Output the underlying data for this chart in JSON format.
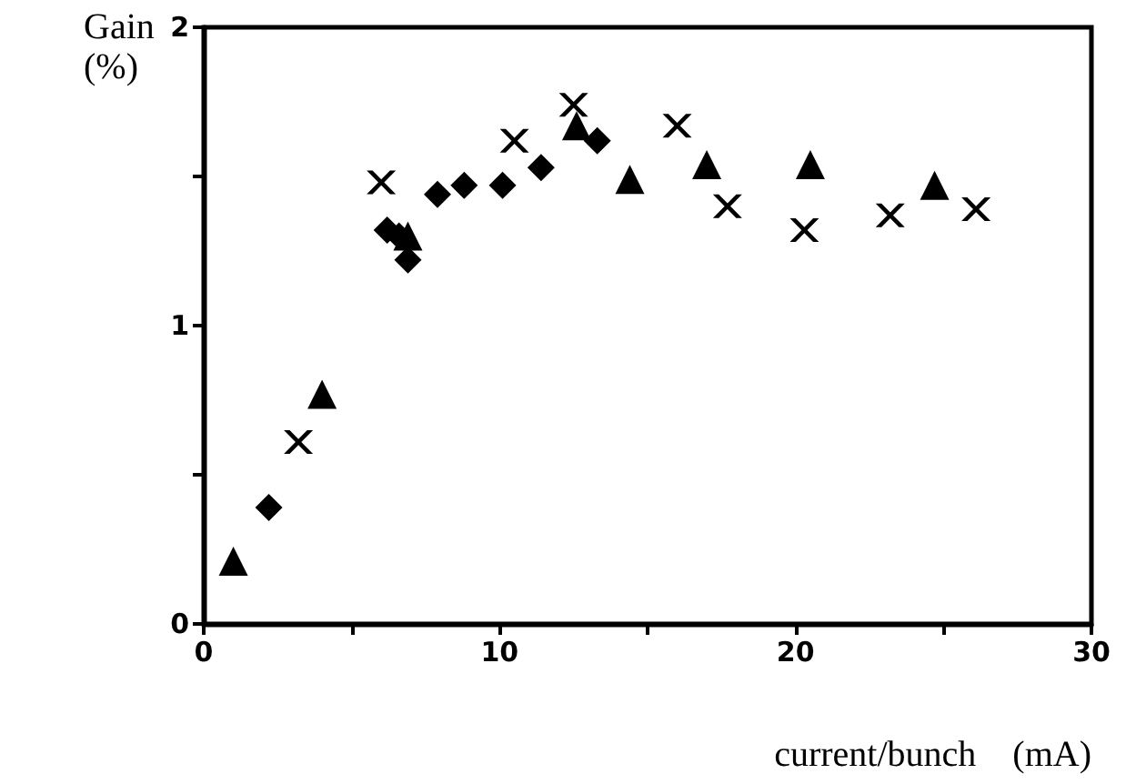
{
  "chart_data": {
    "type": "scatter",
    "xlabel": "current/bunch    (mA)",
    "ylabel": "Gain\n(%)",
    "xlim": [
      0,
      30
    ],
    "xticks": [
      0,
      {
        "value": 5,
        "label": null
      },
      10,
      {
        "value": 15,
        "label": null
      },
      20,
      {
        "value": 25,
        "label": null
      },
      30
    ],
    "ylim": [
      0,
      2
    ],
    "yticks": [
      0,
      {
        "value": 0.5,
        "label": null
      },
      1,
      {
        "value": 1.5,
        "label": null
      },
      2
    ],
    "grid": false,
    "series": [
      {
        "color": "#000000",
        "marker": "triangle",
        "x": [
          1.0,
          4.0,
          6.9,
          12.6,
          14.4,
          17.0,
          20.5,
          24.7
        ],
        "values": [
          0.21,
          0.77,
          1.3,
          1.67,
          1.49,
          1.54,
          1.54,
          1.47
        ]
      },
      {
        "color": "#000000",
        "marker": "diamond",
        "x": [
          2.2,
          6.2,
          6.6,
          6.9,
          7.9,
          8.8,
          10.1,
          11.4,
          13.3
        ],
        "values": [
          0.39,
          1.32,
          1.3,
          1.22,
          1.44,
          1.47,
          1.47,
          1.53,
          1.62
        ]
      },
      {
        "color": "#000000",
        "marker": "cross",
        "x": [
          3.2,
          6.0,
          10.5,
          12.5,
          16.0,
          17.7,
          20.3,
          23.2,
          26.1
        ],
        "values": [
          0.61,
          1.48,
          1.62,
          1.74,
          1.67,
          1.4,
          1.32,
          1.37,
          1.39
        ]
      }
    ]
  }
}
